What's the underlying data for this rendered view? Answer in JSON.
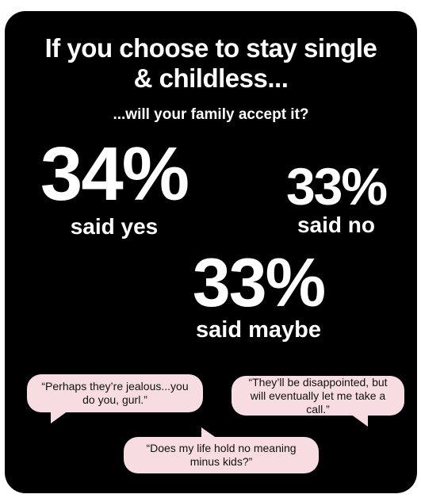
{
  "title": {
    "line1": "If you choose to stay single",
    "line2": "& childless..."
  },
  "subtitle": "...will your family accept it?",
  "stats": {
    "yes": {
      "percent": "34%",
      "label": "said yes"
    },
    "no": {
      "percent": "33%",
      "label": "said no"
    },
    "maybe": {
      "percent": "33%",
      "label": "said maybe"
    }
  },
  "quotes": {
    "q1": "“Perhaps they’re jealous...you do you, gurl.”",
    "q2": "“They’ll be disappointed, but will eventually let me take a call.”",
    "q3": "“Does my life hold no meaning minus kids?”"
  },
  "colors": {
    "background": "#000000",
    "text": "#ffffff",
    "bubble": "#f7dde1"
  }
}
